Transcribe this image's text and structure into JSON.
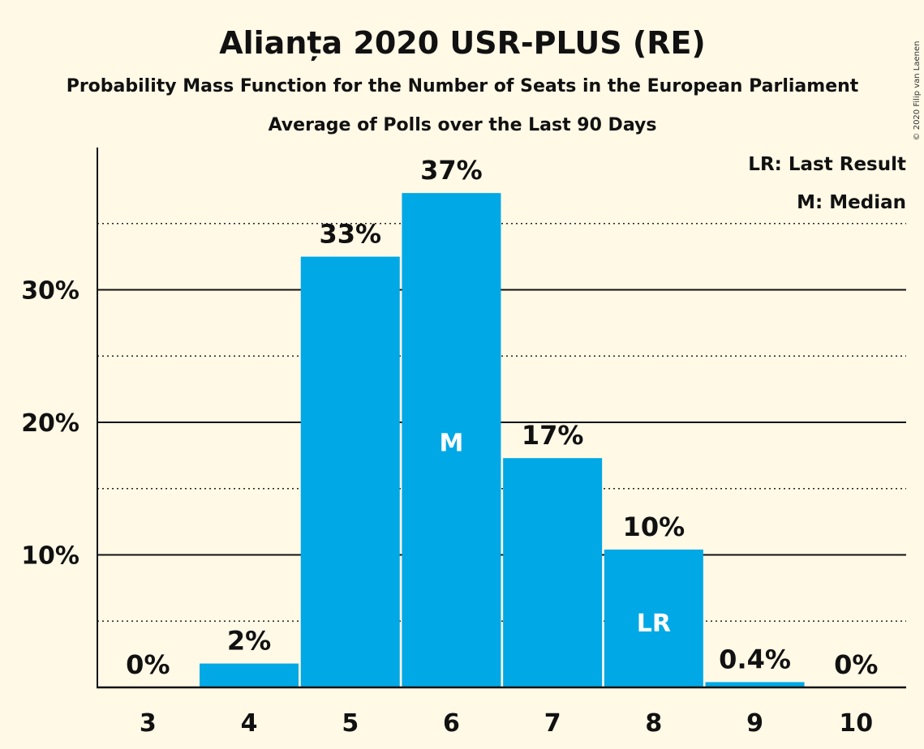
{
  "chart_data": {
    "type": "bar",
    "title": "Alianța 2020 USR-PLUS (RE)",
    "subtitle": "Probability Mass Function for the Number of Seats in the European Parliament",
    "subtitle2": "Average of Polls over the Last 90 Days",
    "categories": [
      "3",
      "4",
      "5",
      "6",
      "7",
      "8",
      "9",
      "10"
    ],
    "values": [
      0,
      1.8,
      32.5,
      37.3,
      17.3,
      10.4,
      0.4,
      0
    ],
    "data_labels": [
      "0%",
      "2%",
      "33%",
      "37%",
      "17%",
      "10%",
      "0.4%",
      "0%"
    ],
    "ylim": [
      0,
      40
    ],
    "yticks": [
      {
        "value": 10,
        "label": "10%"
      },
      {
        "value": 20,
        "label": "20%"
      },
      {
        "value": 30,
        "label": "30%"
      }
    ],
    "minor_gridlines": [
      5,
      15,
      25,
      35
    ],
    "markers": [
      {
        "category": "6",
        "text": "M",
        "value": 18.5
      },
      {
        "category": "8",
        "text": "LR",
        "value": 4.9
      }
    ],
    "legend": {
      "position": "top-right",
      "entries": [
        "LR: Last Result",
        "M: Median"
      ]
    },
    "bar_color": "#00a8e6",
    "copyright": "© 2020 Filip van Laenen"
  }
}
